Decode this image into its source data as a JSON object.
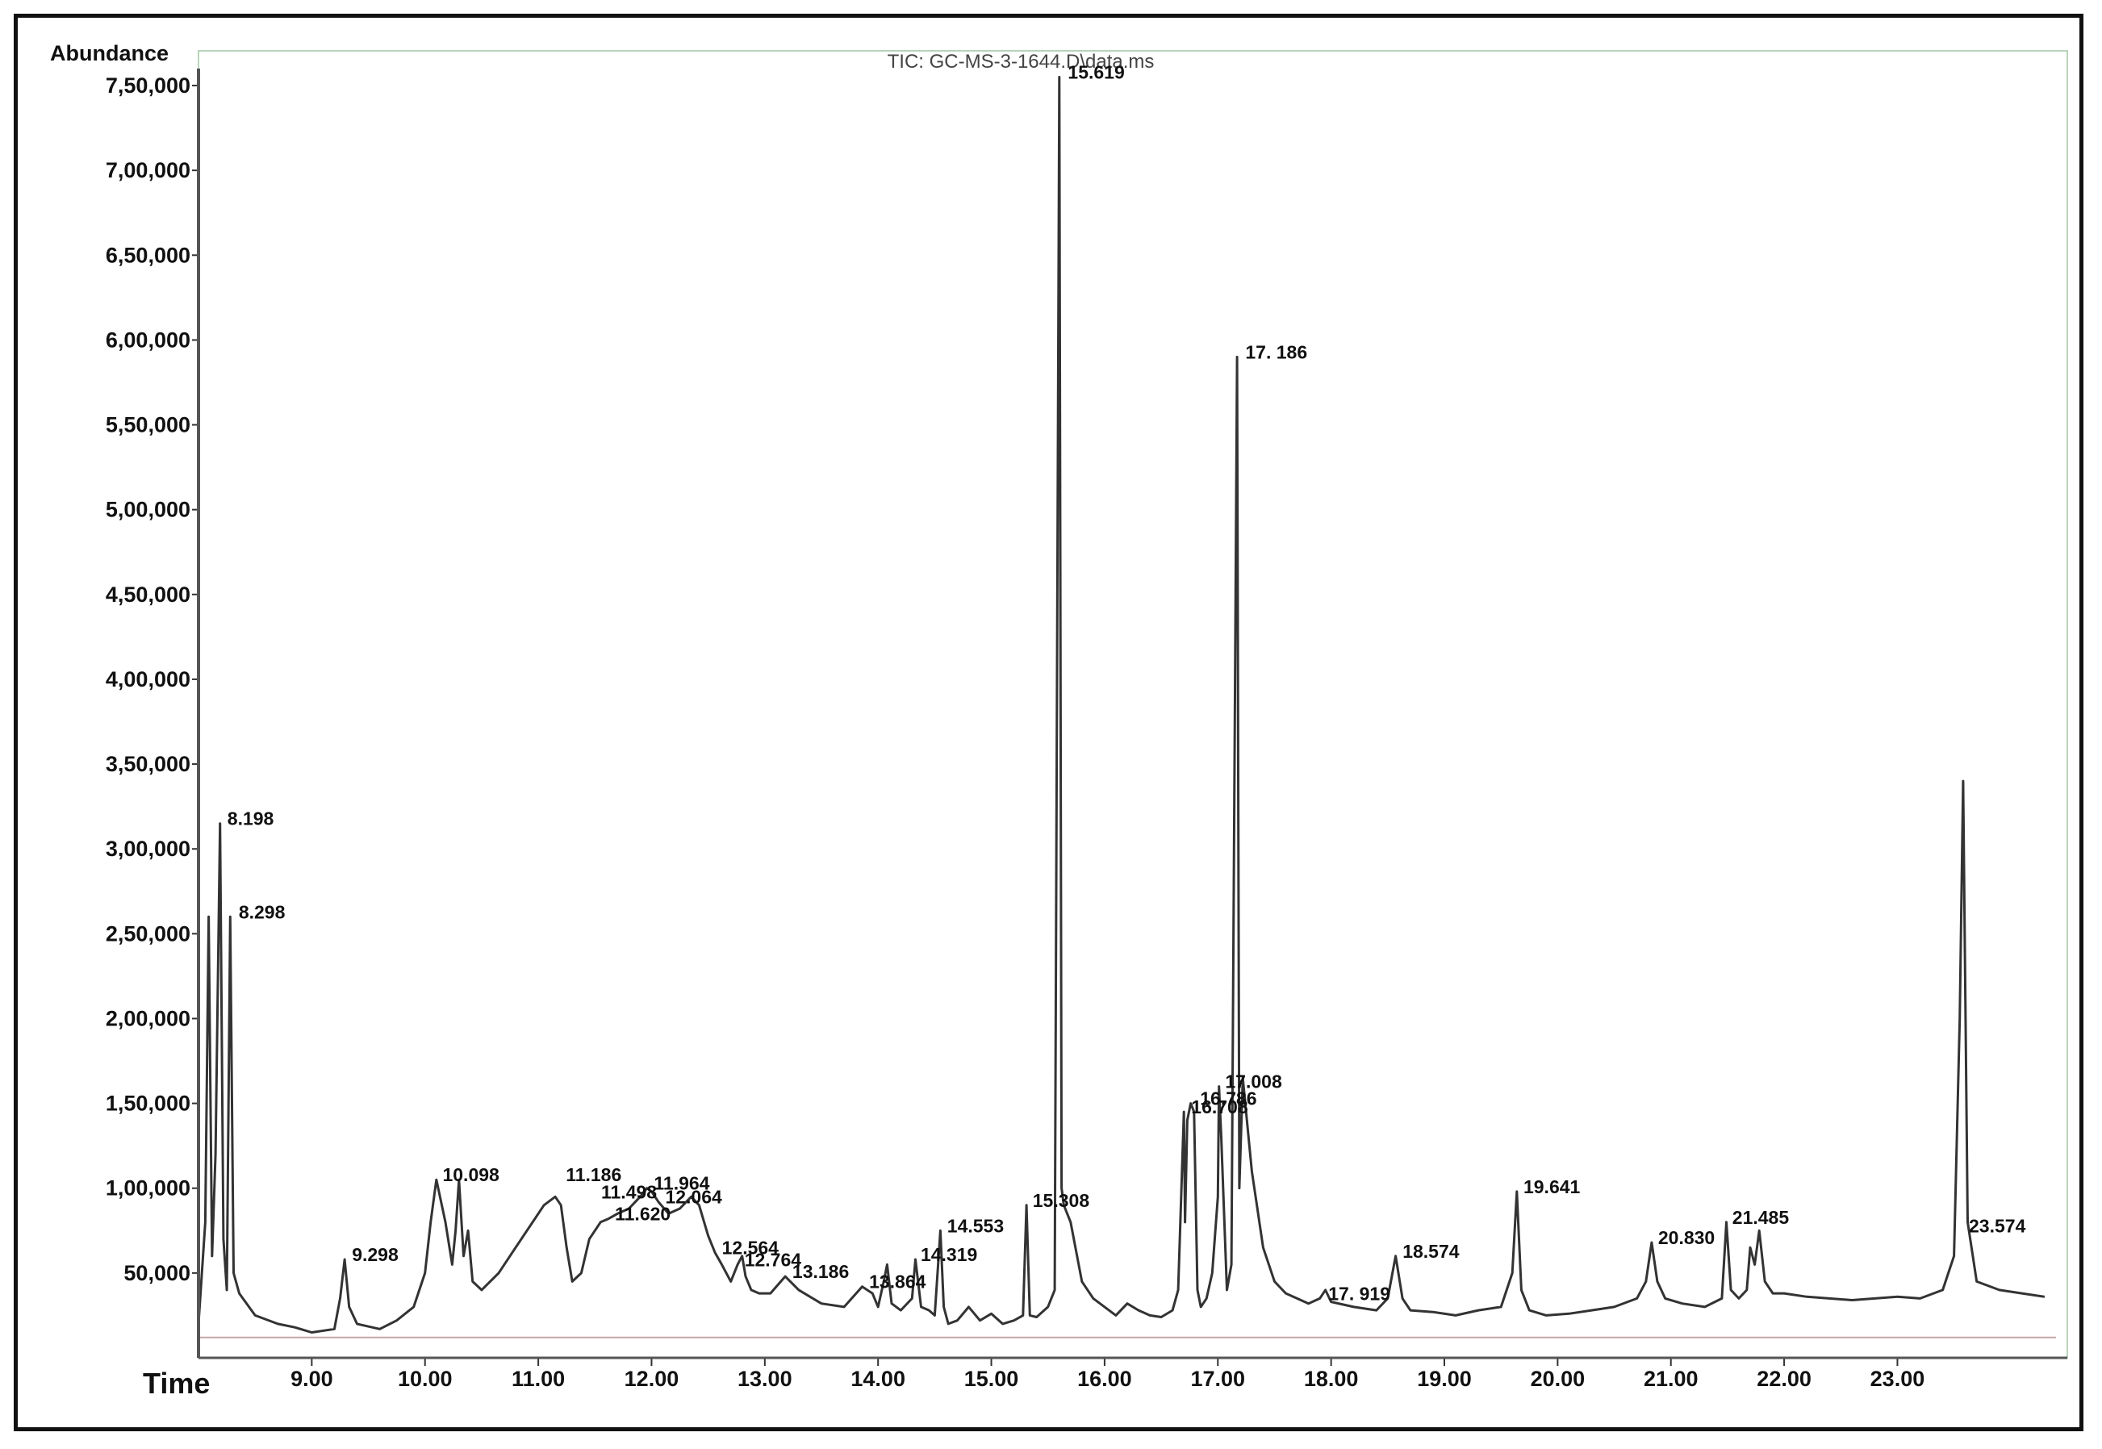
{
  "chart_data": {
    "type": "line",
    "title": "TIC: GC-MS-3-1644.D\\data.ms",
    "ylabel": "Abundance",
    "xlabel": "Time",
    "xlim": [
      8.0,
      24.5
    ],
    "ylim": [
      0,
      760000
    ],
    "y_ticks": [
      {
        "value": 50000,
        "label": "50,000"
      },
      {
        "value": 100000,
        "label": "1,00,000"
      },
      {
        "value": 150000,
        "label": "1,50,000"
      },
      {
        "value": 200000,
        "label": "2,00,000"
      },
      {
        "value": 250000,
        "label": "2,50,000"
      },
      {
        "value": 300000,
        "label": "3,00,000"
      },
      {
        "value": 350000,
        "label": "3,50,000"
      },
      {
        "value": 400000,
        "label": "4,00,000"
      },
      {
        "value": 450000,
        "label": "4,50,000"
      },
      {
        "value": 500000,
        "label": "5,00,000"
      },
      {
        "value": 550000,
        "label": "5,50,000"
      },
      {
        "value": 600000,
        "label": "6,00,000"
      },
      {
        "value": 650000,
        "label": "6,50,000"
      },
      {
        "value": 700000,
        "label": "7,00,000"
      },
      {
        "value": 750000,
        "label": "7,50,000"
      }
    ],
    "x_ticks": [
      {
        "value": 9.0,
        "label": "9.00"
      },
      {
        "value": 10.0,
        "label": "10.00"
      },
      {
        "value": 11.0,
        "label": "11.00"
      },
      {
        "value": 12.0,
        "label": "12.00"
      },
      {
        "value": 13.0,
        "label": "13.00"
      },
      {
        "value": 14.0,
        "label": "14.00"
      },
      {
        "value": 15.0,
        "label": "15.00"
      },
      {
        "value": 16.0,
        "label": "16.00"
      },
      {
        "value": 17.0,
        "label": "17.00"
      },
      {
        "value": 18.0,
        "label": "18.00"
      },
      {
        "value": 19.0,
        "label": "19.00"
      },
      {
        "value": 20.0,
        "label": "20.00"
      },
      {
        "value": 21.0,
        "label": "21.00"
      },
      {
        "value": 22.0,
        "label": "22.00"
      },
      {
        "value": 23.0,
        "label": "23.00"
      }
    ],
    "series": [
      {
        "color": "#333333",
        "x": [
          8.0,
          8.06,
          8.09,
          8.12,
          8.15,
          8.19,
          8.22,
          8.25,
          8.28,
          8.31,
          8.36,
          8.5,
          8.7,
          8.85,
          9.0,
          9.2,
          9.25,
          9.29,
          9.33,
          9.4,
          9.6,
          9.75,
          9.9,
          10.0,
          10.05,
          10.1,
          10.18,
          10.24,
          10.27,
          10.3,
          10.34,
          10.38,
          10.42,
          10.5,
          10.65,
          10.8,
          10.95,
          11.05,
          11.15,
          11.2,
          11.25,
          11.3,
          11.38,
          11.45,
          11.55,
          11.62,
          11.7,
          11.8,
          11.9,
          11.96,
          12.0,
          12.06,
          12.15,
          12.25,
          12.35,
          12.42,
          12.5,
          12.56,
          12.62,
          12.7,
          12.76,
          12.8,
          12.83,
          12.88,
          12.95,
          13.05,
          13.18,
          13.3,
          13.5,
          13.7,
          13.86,
          13.95,
          14.0,
          14.05,
          14.08,
          14.12,
          14.2,
          14.3,
          14.33,
          14.38,
          14.45,
          14.5,
          14.55,
          14.58,
          14.62,
          14.7,
          14.8,
          14.9,
          15.0,
          15.1,
          15.2,
          15.28,
          15.31,
          15.34,
          15.4,
          15.5,
          15.56,
          15.6,
          15.62,
          15.64,
          15.7,
          15.8,
          15.9,
          16.0,
          16.1,
          16.2,
          16.3,
          16.4,
          16.5,
          16.6,
          16.65,
          16.7,
          16.71,
          16.73,
          16.76,
          16.79,
          16.82,
          16.85,
          16.9,
          16.95,
          17.0,
          17.01,
          17.03,
          17.08,
          17.12,
          17.17,
          17.19,
          17.22,
          17.3,
          17.4,
          17.5,
          17.6,
          17.7,
          17.8,
          17.9,
          17.95,
          18.0,
          18.2,
          18.4,
          18.5,
          18.57,
          18.63,
          18.7,
          18.9,
          19.1,
          19.3,
          19.5,
          19.6,
          19.64,
          19.68,
          19.75,
          19.9,
          20.1,
          20.3,
          20.5,
          20.7,
          20.78,
          20.83,
          20.88,
          20.95,
          21.1,
          21.3,
          21.45,
          21.49,
          21.53,
          21.6,
          21.67,
          21.7,
          21.74,
          21.78,
          21.83,
          21.9,
          22.0,
          22.2,
          22.4,
          22.6,
          22.8,
          23.0,
          23.2,
          23.4,
          23.5,
          23.55,
          23.58,
          23.62,
          23.7,
          23.9,
          24.1,
          24.3
        ],
        "y": [
          20000,
          80000,
          260000,
          60000,
          120000,
          315000,
          70000,
          40000,
          260000,
          50000,
          38000,
          25000,
          20000,
          18000,
          15000,
          17000,
          35000,
          58000,
          30000,
          20000,
          17000,
          22000,
          30000,
          50000,
          80000,
          105000,
          80000,
          55000,
          75000,
          105000,
          60000,
          75000,
          45000,
          40000,
          50000,
          65000,
          80000,
          90000,
          95000,
          90000,
          65000,
          45000,
          50000,
          70000,
          80000,
          82000,
          85000,
          88000,
          95000,
          100000,
          98000,
          92000,
          85000,
          88000,
          95000,
          90000,
          72000,
          62000,
          55000,
          45000,
          55000,
          60000,
          48000,
          40000,
          38000,
          38000,
          48000,
          40000,
          32000,
          30000,
          42000,
          38000,
          30000,
          45000,
          55000,
          32000,
          28000,
          35000,
          58000,
          30000,
          28000,
          25000,
          75000,
          30000,
          20000,
          22000,
          30000,
          22000,
          26000,
          20000,
          22000,
          25000,
          90000,
          25000,
          24000,
          30000,
          40000,
          755000,
          100000,
          90000,
          80000,
          45000,
          35000,
          30000,
          25000,
          32000,
          28000,
          25000,
          24000,
          28000,
          40000,
          145000,
          80000,
          140000,
          150000,
          145000,
          40000,
          30000,
          35000,
          50000,
          95000,
          160000,
          130000,
          40000,
          55000,
          590000,
          100000,
          165000,
          110000,
          65000,
          45000,
          38000,
          35000,
          32000,
          35000,
          40000,
          33000,
          30000,
          28000,
          35000,
          60000,
          35000,
          28000,
          27000,
          25000,
          28000,
          30000,
          50000,
          98000,
          40000,
          28000,
          25000,
          26000,
          28000,
          30000,
          35000,
          45000,
          68000,
          45000,
          35000,
          32000,
          30000,
          35000,
          80000,
          40000,
          35000,
          40000,
          65000,
          55000,
          75000,
          45000,
          38000,
          38000,
          36000,
          35000,
          34000,
          35000,
          36000,
          35000,
          40000,
          60000,
          200000,
          340000,
          80000,
          45000,
          40000,
          38000,
          36000
        ]
      }
    ],
    "peak_labels": [
      {
        "label": "8.198",
        "x": 8.198,
        "y": 315000
      },
      {
        "label": "8.298",
        "x": 8.298,
        "y": 260000
      },
      {
        "label": "9.298",
        "x": 9.298,
        "y": 58000
      },
      {
        "label": "10.098",
        "x": 10.098,
        "y": 105000
      },
      {
        "label": "11.186",
        "x": 11.186,
        "y": 105000
      },
      {
        "label": "11.498",
        "x": 11.498,
        "y": 95000
      },
      {
        "label": "11.620",
        "x": 11.62,
        "y": 82000
      },
      {
        "label": "11.964",
        "x": 11.964,
        "y": 100000
      },
      {
        "label": "12.064",
        "x": 12.064,
        "y": 92000
      },
      {
        "label": "12.564",
        "x": 12.564,
        "y": 62000
      },
      {
        "label": "12.764",
        "x": 12.764,
        "y": 55000
      },
      {
        "label": "13.186",
        "x": 13.186,
        "y": 48000
      },
      {
        "label": "13.864",
        "x": 13.864,
        "y": 42000
      },
      {
        "label": "14.319",
        "x": 14.319,
        "y": 58000
      },
      {
        "label": "14.553",
        "x": 14.553,
        "y": 75000
      },
      {
        "label": "15.308",
        "x": 15.308,
        "y": 90000
      },
      {
        "label": "15.619",
        "x": 15.619,
        "y": 755000
      },
      {
        "label": "16.708",
        "x": 16.708,
        "y": 145000
      },
      {
        "label": "16.786",
        "x": 16.786,
        "y": 150000
      },
      {
        "label": "17.008",
        "x": 17.008,
        "y": 160000
      },
      {
        "label": "17. 186",
        "x": 17.186,
        "y": 590000
      },
      {
        "label": "17. 919",
        "x": 17.919,
        "y": 35000
      },
      {
        "label": "18.574",
        "x": 18.574,
        "y": 60000
      },
      {
        "label": "19.641",
        "x": 19.641,
        "y": 98000
      },
      {
        "label": "20.830",
        "x": 20.83,
        "y": 68000
      },
      {
        "label": "21.485",
        "x": 21.485,
        "y": 80000
      },
      {
        "label": "23.574",
        "x": 23.574,
        "y": 75000
      }
    ],
    "grid": false,
    "legend": "none"
  }
}
